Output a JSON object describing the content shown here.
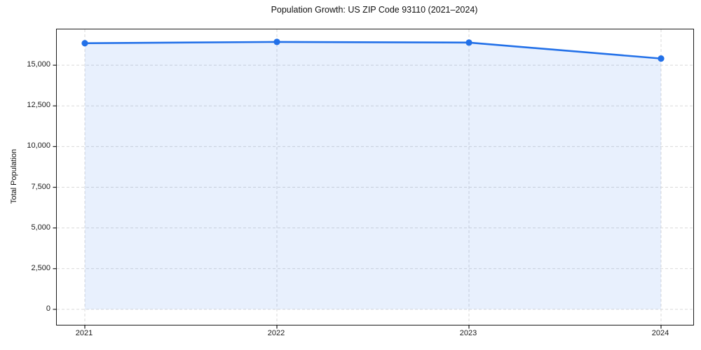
{
  "figure": {
    "background_color": "#ffffff",
    "title": "Population Growth: US ZIP Code 93110 (2021–2024)",
    "ylabel": "Total Population",
    "xlabel": ""
  },
  "chart_data": {
    "type": "line",
    "title": "Population Growth: US ZIP Code 93110 (2021–2024)",
    "xlabel": "",
    "ylabel": "Total Population",
    "categories": [
      "2021",
      "2022",
      "2023",
      "2024"
    ],
    "series": [
      {
        "name": "Total Population",
        "values": [
          16350,
          16430,
          16390,
          15410
        ]
      }
    ],
    "ylim": [
      -950,
      17200
    ],
    "yticks": {
      "values": [
        0,
        2500,
        5000,
        7500,
        10000,
        12500,
        15000
      ],
      "labels": [
        "0",
        "2,500",
        "5,000",
        "7,500",
        "10,000",
        "12,500",
        "15,000"
      ]
    },
    "grid": true,
    "grid_style": "dashed",
    "legend_position": "none",
    "marker": "circle",
    "area_fill": true,
    "fill_baseline": 0,
    "colors": {
      "line": "#2270e8",
      "marker": "#2270e8",
      "area": "rgba(34, 112, 232, 0.10)",
      "grid": "#d9d9d9",
      "axis": "#1a1a1a",
      "text": "#1a1a1a"
    }
  }
}
